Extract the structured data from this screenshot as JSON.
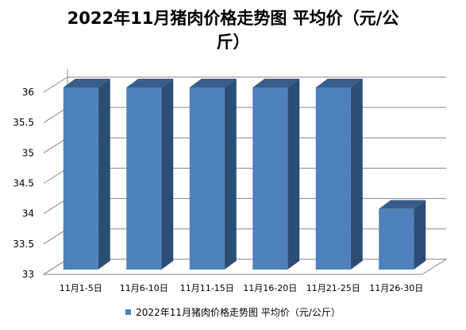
{
  "chart_data": {
    "type": "bar",
    "title_line1": "2022年11月猪肉价格走势图 平均价（元/公",
    "title_line2": "斤）",
    "categories": [
      "11月1-5日",
      "11月6-10日",
      "11月11-15日",
      "11月16-20日",
      "11月21-25日",
      "11月26-30日"
    ],
    "series": [
      {
        "name": "2022年11月猪肉价格走势图 平均价（元/公斤）",
        "values": [
          36,
          36,
          36,
          36,
          36,
          34
        ]
      }
    ],
    "y_ticks": [
      "33",
      "33.5",
      "34",
      "34.5",
      "35",
      "35.5",
      "36"
    ],
    "ylim": [
      33,
      36
    ],
    "grid": true,
    "legend_position": "bottom",
    "bar_color": "#4F81BD"
  }
}
